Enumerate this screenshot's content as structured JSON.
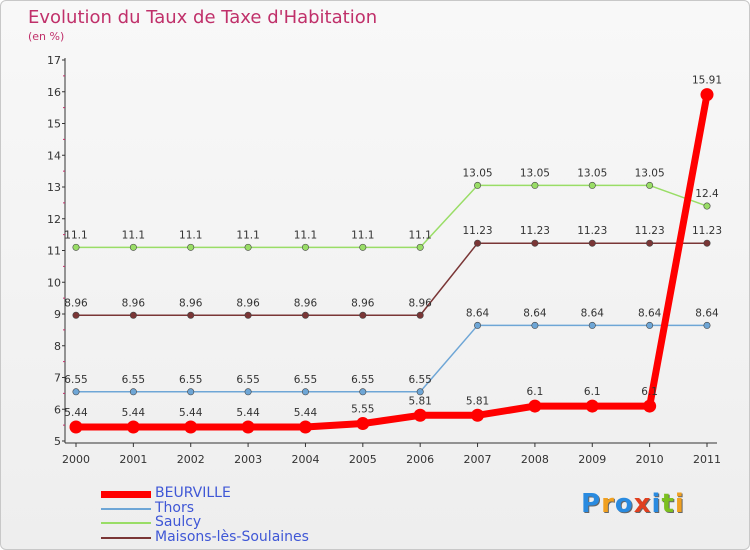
{
  "title": "Evolution du Taux de Taxe d'Habitation",
  "unit": "(en %)",
  "logo": {
    "letters": [
      "P",
      "r",
      "o",
      "x",
      "i",
      "t",
      "i"
    ],
    "colors": [
      "#2a8be0",
      "#f0a020",
      "#2a8be0",
      "#e04020",
      "#2a8be0",
      "#7cc020",
      "#f0a020"
    ]
  },
  "chart_data": {
    "type": "line",
    "x": [
      "2000",
      "2001",
      "2002",
      "2003",
      "2004",
      "2005",
      "2006",
      "2007",
      "2008",
      "2009",
      "2010",
      "2011"
    ],
    "ylim": [
      5,
      17
    ],
    "yticks": [
      5,
      6,
      7,
      8,
      9,
      10,
      11,
      12,
      13,
      14,
      15,
      16,
      17
    ],
    "grid": false,
    "legend_position": "bottom-left",
    "series": [
      {
        "name": "BEURVILLE",
        "color": "#ff0000",
        "width": 7,
        "values": [
          5.44,
          5.44,
          5.44,
          5.44,
          5.44,
          5.55,
          5.81,
          5.81,
          6.1,
          6.1,
          6.1,
          15.91
        ],
        "labels": [
          "5.44",
          "5.44",
          "5.44",
          "5.44",
          "5.44",
          "5.55",
          "5.81",
          "5.81",
          "6.1",
          "6.1",
          "6.1",
          "15.91"
        ]
      },
      {
        "name": "Thors",
        "color": "#6ea6d6",
        "width": 1.5,
        "values": [
          6.55,
          6.55,
          6.55,
          6.55,
          6.55,
          6.55,
          6.55,
          8.64,
          8.64,
          8.64,
          8.64,
          8.64
        ],
        "labels": [
          "6.55",
          "6.55",
          "6.55",
          "6.55",
          "6.55",
          "6.55",
          "6.55",
          "8.64",
          "8.64",
          "8.64",
          "8.64",
          "8.64"
        ]
      },
      {
        "name": "Saulcy",
        "color": "#99dd66",
        "width": 1.5,
        "values": [
          11.1,
          11.1,
          11.1,
          11.1,
          11.1,
          11.1,
          11.1,
          13.05,
          13.05,
          13.05,
          13.05,
          12.4
        ],
        "labels": [
          "11.1",
          "11.1",
          "11.1",
          "11.1",
          "11.1",
          "11.1",
          "11.1",
          "13.05",
          "13.05",
          "13.05",
          "13.05",
          "12.4"
        ]
      },
      {
        "name": "Maisons-lès-Soulaines",
        "color": "#7a3636",
        "width": 1.5,
        "values": [
          8.96,
          8.96,
          8.96,
          8.96,
          8.96,
          8.96,
          8.96,
          11.23,
          11.23,
          11.23,
          11.23,
          11.23
        ],
        "labels": [
          "8.96",
          "8.96",
          "8.96",
          "8.96",
          "8.96",
          "8.96",
          "8.96",
          "11.23",
          "11.23",
          "11.23",
          "11.23",
          "11.23"
        ]
      }
    ]
  }
}
